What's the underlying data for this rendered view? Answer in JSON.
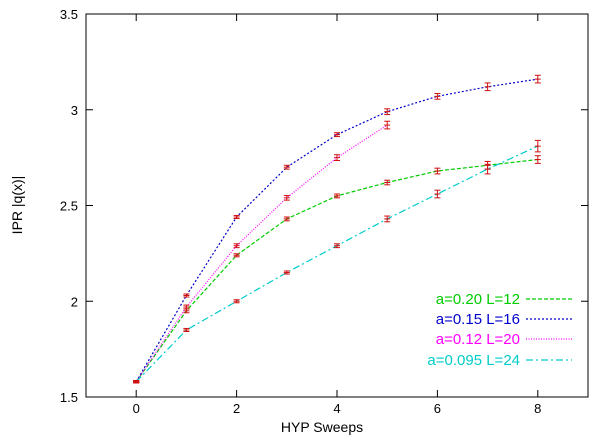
{
  "chart_data": {
    "type": "line",
    "xlabel": "HYP Sweeps",
    "ylabel": "IPR |q(x)|",
    "xlim": [
      -1,
      9
    ],
    "ylim": [
      1.5,
      3.5
    ],
    "x_ticks": [
      0,
      2,
      4,
      6,
      8
    ],
    "x_tick_labels": [
      "0",
      "2",
      "4",
      "6",
      "8"
    ],
    "y_ticks": [
      1.5,
      2,
      2.5,
      3,
      3.5
    ],
    "y_tick_labels": [
      "1.5",
      "2",
      "2.5",
      "3",
      "3.5"
    ],
    "grid": false,
    "legend_position": "bottom-right",
    "errorbar_color": "#d01010",
    "series": [
      {
        "name": "a=0.20 L=12",
        "color": "#00cc00",
        "dash": "short-dash",
        "x": [
          0,
          1,
          2,
          3,
          4,
          5,
          6,
          7,
          8
        ],
        "y": [
          1.58,
          1.95,
          2.24,
          2.43,
          2.55,
          2.62,
          2.68,
          2.71,
          2.74
        ],
        "err": [
          0.005,
          0.01,
          0.008,
          0.01,
          0.01,
          0.012,
          0.015,
          0.02,
          0.02
        ]
      },
      {
        "name": "a=0.15 L=16",
        "color": "#0000cc",
        "dash": "dotted",
        "x": [
          0,
          1,
          2,
          3,
          4,
          5,
          6,
          7,
          8
        ],
        "y": [
          1.58,
          2.03,
          2.44,
          2.7,
          2.87,
          2.99,
          3.07,
          3.12,
          3.16
        ],
        "err": [
          0.005,
          0.008,
          0.008,
          0.01,
          0.01,
          0.015,
          0.015,
          0.02,
          0.02
        ]
      },
      {
        "name": "a=0.12 L=20",
        "color": "#ff00ff",
        "dash": "fine-dotted",
        "x": [
          0,
          1,
          2,
          3,
          4,
          5
        ],
        "y": [
          1.58,
          1.97,
          2.29,
          2.54,
          2.75,
          2.92
        ],
        "err": [
          0.005,
          0.01,
          0.01,
          0.012,
          0.015,
          0.02
        ]
      },
      {
        "name": "a=0.095 L=24",
        "color": "#00cccc",
        "dash": "dash-dot",
        "x": [
          0,
          1,
          2,
          3,
          4,
          5,
          6,
          7,
          8
        ],
        "y": [
          1.58,
          1.85,
          2.0,
          2.15,
          2.29,
          2.43,
          2.56,
          2.69,
          2.81
        ],
        "err": [
          0.005,
          0.008,
          0.008,
          0.008,
          0.01,
          0.015,
          0.02,
          0.025,
          0.03
        ]
      }
    ]
  }
}
